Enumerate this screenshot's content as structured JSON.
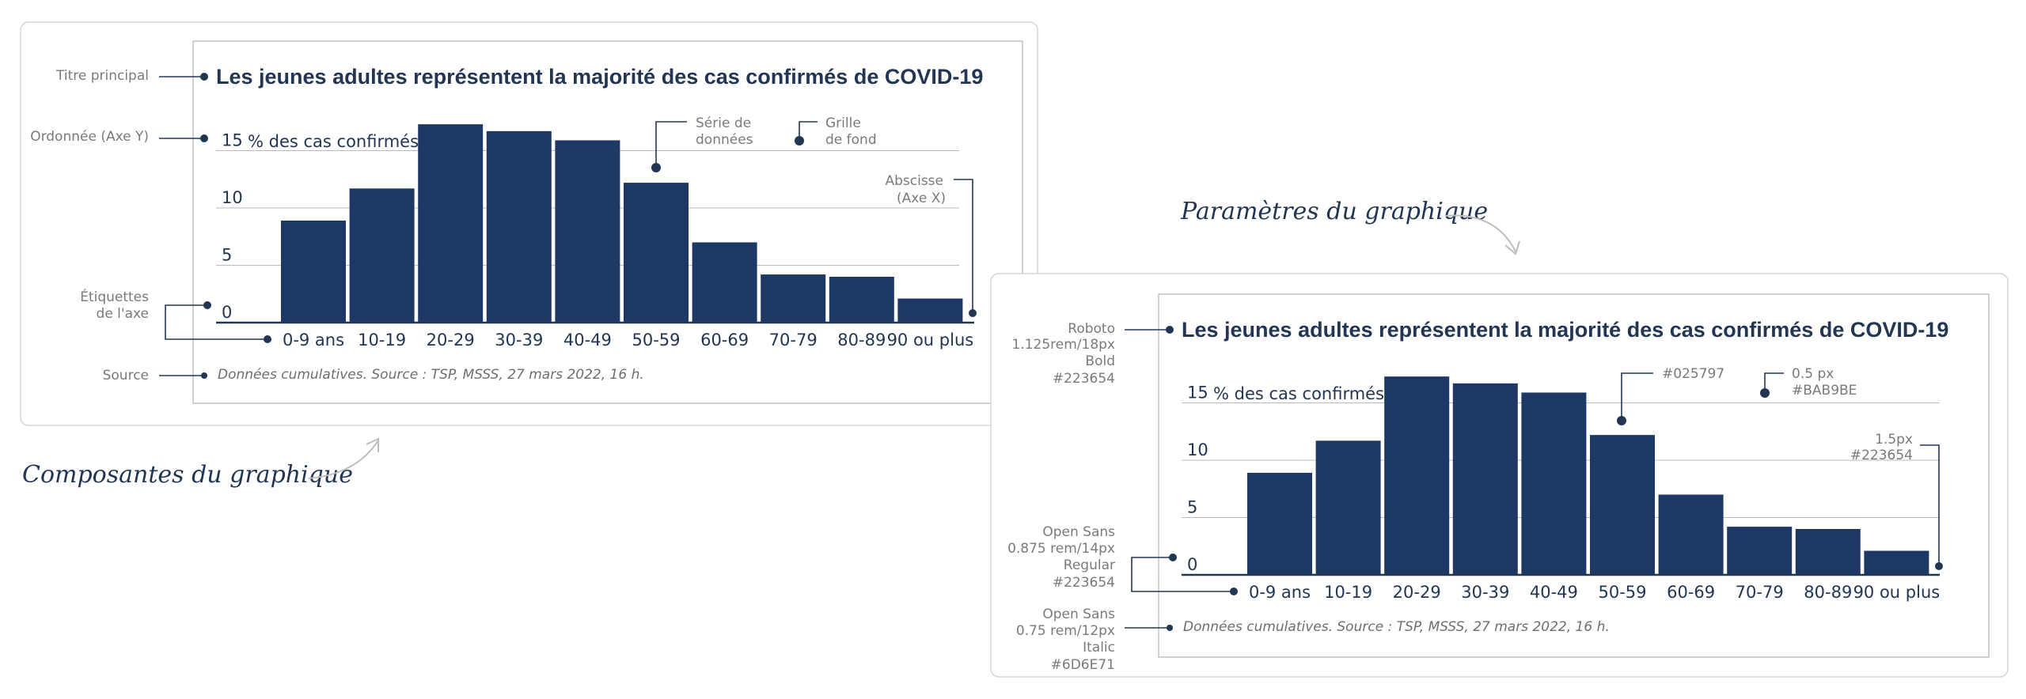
{
  "colors": {
    "bar": "#1d3864",
    "text": "#223654",
    "grid": "#BAB9BE",
    "source": "#6D6E71",
    "annotation": "#7a7a7a",
    "card_border": "#d5d5d5",
    "frame_border": "#b3b3b3",
    "arrow": "#bdbdbd"
  },
  "chart_data": {
    "type": "bar",
    "title": "Les jeunes adultes représentent la majorité des cas confirmés de COVID-19",
    "ylabel": "% des cas confirmés",
    "categories": [
      "0-9 ans",
      "10-19",
      "20-29",
      "30-39",
      "40-49",
      "50-59",
      "60-69",
      "70-79",
      "80-89",
      "90 ou plus"
    ],
    "values": [
      8.9,
      11.7,
      17.3,
      16.7,
      15.9,
      12.2,
      7.0,
      4.2,
      4.0,
      2.1
    ],
    "ylim": [
      0,
      15
    ],
    "yticks": [
      "0",
      "5",
      "10",
      "15"
    ],
    "grid": true,
    "source": "Données cumulatives. Source : TSP, MSSS, 27 mars 2022, 16 h."
  },
  "left_panel": {
    "caption": "Composantes du graphique",
    "annotations": {
      "title": "Titre principal",
      "yaxis": "Ordonnée (Axe Y)",
      "series_1": "Série de",
      "series_2": "données",
      "grid_1": "Grille",
      "grid_2": "de fond",
      "xaxis_1": "Abscisse",
      "xaxis_2": "(Axe X)",
      "labels_1": "Étiquettes",
      "labels_2": "de l'axe",
      "source": "Source"
    }
  },
  "right_panel": {
    "caption": "Paramètres du graphique",
    "annotations": {
      "title_font": [
        "Roboto",
        "1.125rem/18px",
        "Bold",
        "#223654"
      ],
      "series_color": "#025797",
      "grid_1": "0.5 px",
      "grid_2": "#BAB9BE",
      "axis_1": "1.5px",
      "axis_2": "#223654",
      "labels_font": [
        "Open Sans",
        "0.875 rem/14px",
        "Regular",
        "#223654"
      ],
      "source_font": [
        "Open Sans",
        "0.75 rem/12px",
        "Italic",
        "#6D6E71"
      ]
    }
  }
}
